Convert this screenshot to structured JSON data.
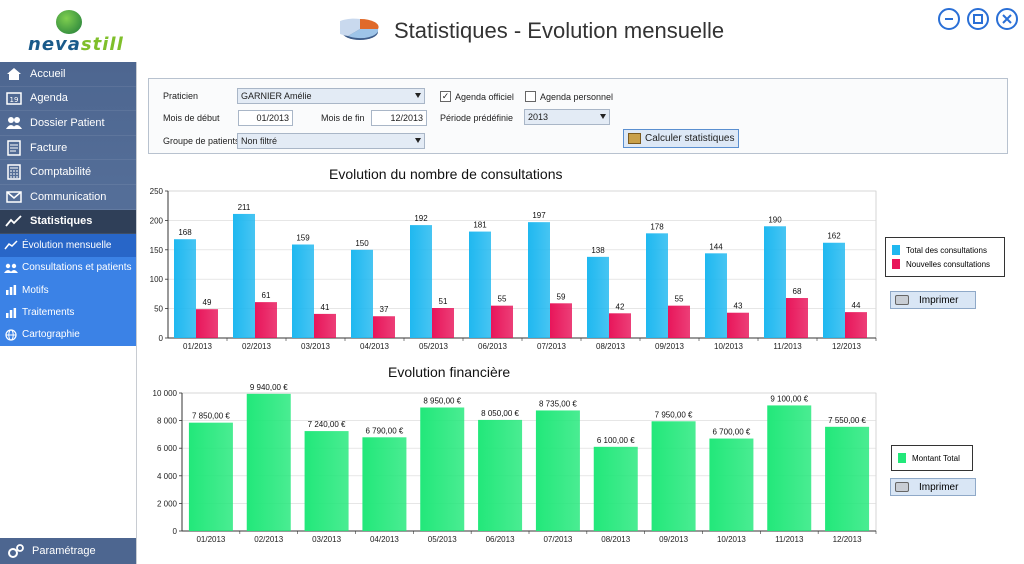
{
  "app": {
    "logo_text_1": "neva",
    "logo_text_2": "still"
  },
  "header": {
    "title": "Statistiques - Evolution mensuelle"
  },
  "window_buttons": [
    "minimize",
    "maximize",
    "close"
  ],
  "sidebar": {
    "items": [
      {
        "label": "Accueil",
        "icon": "home-icon"
      },
      {
        "label": "Agenda",
        "icon": "calendar-icon"
      },
      {
        "label": "Dossier Patient",
        "icon": "patients-icon"
      },
      {
        "label": "Facture",
        "icon": "invoice-icon"
      },
      {
        "label": "Comptabilité",
        "icon": "calculator-icon"
      },
      {
        "label": "Communication",
        "icon": "mail-icon"
      },
      {
        "label": "Statistiques",
        "icon": "chart-line-icon",
        "active": true
      }
    ],
    "subitems": [
      {
        "label": "Évolution mensuelle",
        "icon": "trend-icon",
        "active": true
      },
      {
        "label": "Consultations et patients",
        "icon": "users-icon"
      },
      {
        "label": "Motifs",
        "icon": "bar-chart-icon"
      },
      {
        "label": "Traitements",
        "icon": "bar-chart-icon"
      },
      {
        "label": "Cartographie",
        "icon": "globe-icon"
      }
    ],
    "footer": {
      "label": "Paramétrage",
      "icon": "settings-icon"
    }
  },
  "filters": {
    "praticien_label": "Praticien",
    "praticien_value": "GARNIER Amélie",
    "mois_debut_label": "Mois de début",
    "mois_debut_value": "01/2013",
    "mois_fin_label": "Mois de fin",
    "mois_fin_value": "12/2013",
    "groupe_label": "Groupe de patients",
    "groupe_value": "Non filtré",
    "agenda_officiel_label": "Agenda officiel",
    "agenda_officiel_checked": true,
    "agenda_personnel_label": "Agenda personnel",
    "agenda_personnel_checked": false,
    "periode_label": "Période prédéfinie",
    "periode_value": "2013",
    "calc_label": "Calculer statistiques"
  },
  "print_label": "Imprimer",
  "chart_data": [
    {
      "type": "bar",
      "title": "Evolution du nombre de consultations",
      "categories": [
        "01/2013",
        "02/2013",
        "03/2013",
        "04/2013",
        "05/2013",
        "06/2013",
        "07/2013",
        "08/2013",
        "09/2013",
        "10/2013",
        "11/2013",
        "12/2013"
      ],
      "series": [
        {
          "name": "Total des consultations",
          "color": "#1fb8f0",
          "values": [
            168,
            211,
            159,
            150,
            192,
            181,
            197,
            138,
            178,
            144,
            190,
            162
          ]
        },
        {
          "name": "Nouvelles consultations",
          "color": "#e8155a",
          "values": [
            49,
            61,
            41,
            37,
            51,
            55,
            59,
            42,
            55,
            43,
            68,
            44
          ]
        }
      ],
      "ylim": [
        0,
        250
      ],
      "yticks": [
        "0",
        "50",
        "100",
        "150",
        "200",
        "250"
      ],
      "grid": true,
      "legend": "right"
    },
    {
      "type": "bar",
      "title": "Evolution financière",
      "categories": [
        "01/2013",
        "02/2013",
        "03/2013",
        "04/2013",
        "05/2013",
        "06/2013",
        "07/2013",
        "08/2013",
        "09/2013",
        "10/2013",
        "11/2013",
        "12/2013"
      ],
      "series": [
        {
          "name": "Montant Total",
          "color": "#22e87a",
          "values": [
            7850,
            9940,
            7240,
            6790,
            8950,
            8050,
            8735,
            6100,
            7950,
            6700,
            9100,
            7550
          ],
          "labels": [
            "7 850,00 €",
            "9 940,00 €",
            "7 240,00 €",
            "6 790,00 €",
            "8 950,00 €",
            "8 050,00 €",
            "8 735,00 €",
            "6 100,00 €",
            "7 950,00 €",
            "6 700,00 €",
            "9 100,00 €",
            "7 550,00 €"
          ]
        }
      ],
      "ylim": [
        0,
        10000
      ],
      "yticks": [
        "0",
        "2 000",
        "4 000",
        "6 000",
        "8 000",
        "10 000"
      ],
      "grid": true,
      "legend": "right"
    }
  ]
}
